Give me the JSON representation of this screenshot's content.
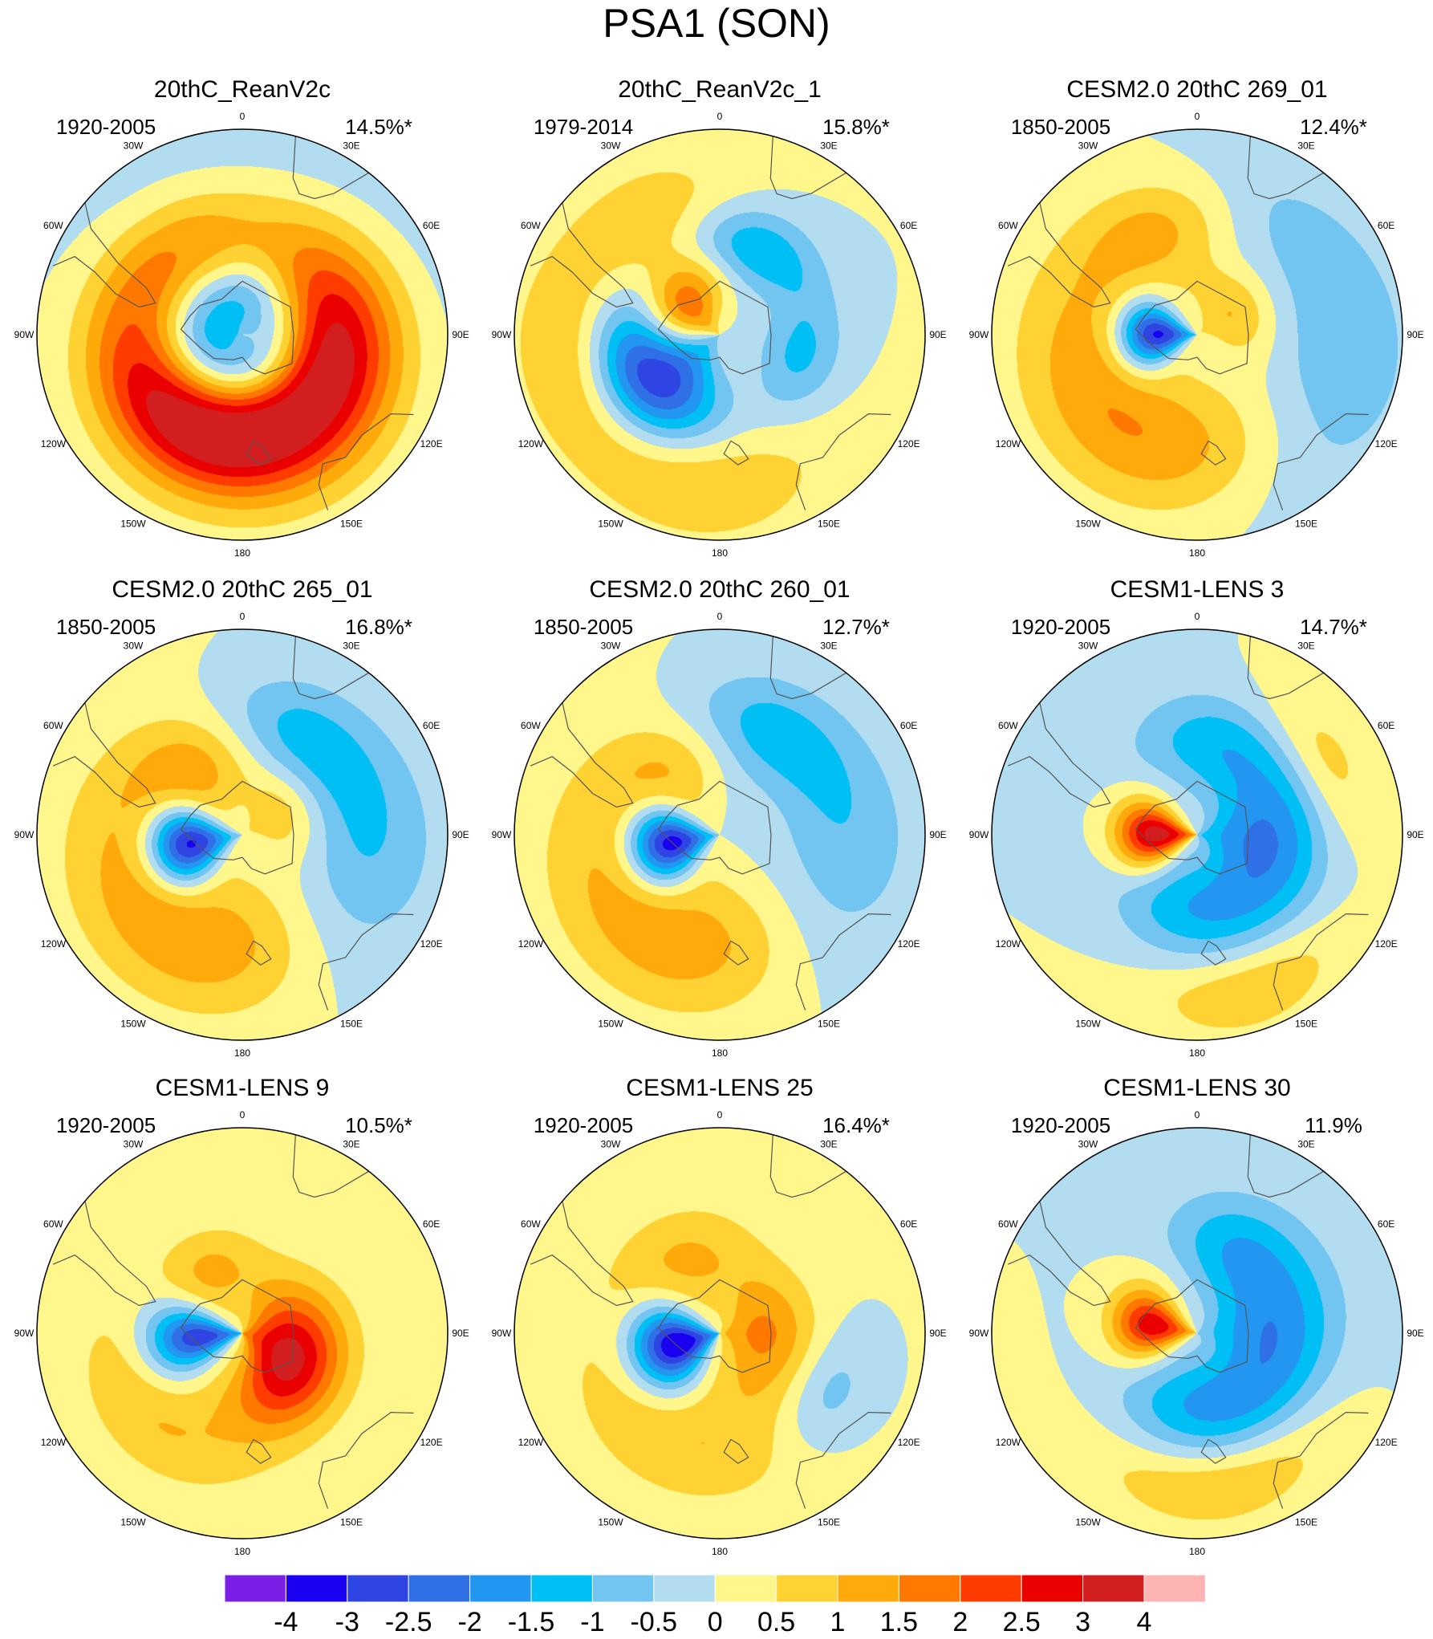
{
  "figure_title": "PSA1 (SON)",
  "longitude_labels": [
    "0",
    "30E",
    "60E",
    "90E",
    "120E",
    "150E",
    "180",
    "150W",
    "120W",
    "90W",
    "60W",
    "30W"
  ],
  "panels": [
    {
      "title": "20thC_ReanV2c",
      "period": "1920-2005",
      "variance": "14.5%*",
      "features": [
        {
          "lon": 140,
          "r": 0.5,
          "v": 2.5,
          "sa": 110,
          "sr": 0.35
        },
        {
          "lon": 90,
          "r": 0.38,
          "v": 1.5,
          "sa": 70,
          "sr": 0.25
        },
        {
          "lon": 200,
          "r": 0.48,
          "v": 1.5,
          "sa": 60,
          "sr": 0.25
        },
        {
          "lon": 250,
          "r": 0.55,
          "v": 1.0,
          "sa": 60,
          "sr": 0.25
        },
        {
          "lon": 320,
          "r": 0.48,
          "v": 1.2,
          "sa": 45,
          "sr": 0.25
        },
        {
          "lon": 220,
          "r": 0.15,
          "v": -1.6,
          "sa": 360,
          "sr": 0.22
        },
        {
          "lon": 30,
          "r": 0.95,
          "v": -0.4,
          "sa": 90,
          "sr": 0.4
        }
      ]
    },
    {
      "title": "20thC_ReanV2c_1",
      "period": "1979-2014",
      "variance": "15.8%*",
      "features": [
        {
          "lon": 240,
          "r": 0.35,
          "v": -3.5,
          "sa": 55,
          "sr": 0.28
        },
        {
          "lon": 300,
          "r": 0.22,
          "v": 2.2,
          "sa": 60,
          "sr": 0.2
        },
        {
          "lon": 20,
          "r": 0.45,
          "v": -1.6,
          "sa": 45,
          "sr": 0.2
        },
        {
          "lon": 105,
          "r": 0.4,
          "v": -1.1,
          "sa": 40,
          "sr": 0.2
        },
        {
          "lon": 190,
          "r": 0.7,
          "v": 1.1,
          "sa": 50,
          "sr": 0.3
        },
        {
          "lon": 265,
          "r": 0.75,
          "v": 1.0,
          "sa": 40,
          "sr": 0.25
        },
        {
          "lon": 330,
          "r": 0.6,
          "v": 1.0,
          "sa": 40,
          "sr": 0.3
        }
      ]
    },
    {
      "title": "CESM2.0 20thC 269_01",
      "period": "1850-2005",
      "variance": "12.4%*",
      "features": [
        {
          "lon": 270,
          "r": 0.2,
          "v": -3.5,
          "sa": 35,
          "sr": 0.18
        },
        {
          "lon": 210,
          "r": 0.55,
          "v": 1.6,
          "sa": 110,
          "sr": 0.35
        },
        {
          "lon": 340,
          "r": 0.55,
          "v": 1.1,
          "sa": 40,
          "sr": 0.25
        },
        {
          "lon": 60,
          "r": 0.2,
          "v": 1.1,
          "sa": 60,
          "sr": 0.2
        },
        {
          "lon": 115,
          "r": 0.65,
          "v": -1.2,
          "sa": 60,
          "sr": 0.4
        },
        {
          "lon": 30,
          "r": 0.65,
          "v": -0.6,
          "sa": 70,
          "sr": 0.3
        }
      ]
    },
    {
      "title": "CESM2.0 20thC 265_01",
      "period": "1850-2005",
      "variance": "16.8%*",
      "features": [
        {
          "lon": 260,
          "r": 0.27,
          "v": -3.8,
          "sa": 35,
          "sr": 0.2
        },
        {
          "lon": 205,
          "r": 0.55,
          "v": 1.6,
          "sa": 100,
          "sr": 0.35
        },
        {
          "lon": 320,
          "r": 0.4,
          "v": 1.2,
          "sa": 45,
          "sr": 0.25
        },
        {
          "lon": 60,
          "r": 0.2,
          "v": 1.0,
          "sa": 60,
          "sr": 0.2
        },
        {
          "lon": 110,
          "r": 0.6,
          "v": -1.4,
          "sa": 60,
          "sr": 0.35
        },
        {
          "lon": 30,
          "r": 0.55,
          "v": -1.2,
          "sa": 50,
          "sr": 0.25
        }
      ]
    },
    {
      "title": "CESM2.0 20thC 260_01",
      "period": "1850-2005",
      "variance": "12.7%*",
      "features": [
        {
          "lon": 260,
          "r": 0.25,
          "v": -3.8,
          "sa": 35,
          "sr": 0.2
        },
        {
          "lon": 200,
          "r": 0.55,
          "v": 1.5,
          "sa": 100,
          "sr": 0.35
        },
        {
          "lon": 320,
          "r": 0.4,
          "v": 1.0,
          "sa": 45,
          "sr": 0.25
        },
        {
          "lon": 110,
          "r": 0.6,
          "v": -1.3,
          "sa": 60,
          "sr": 0.35
        },
        {
          "lon": 25,
          "r": 0.55,
          "v": -1.3,
          "sa": 50,
          "sr": 0.25
        }
      ]
    },
    {
      "title": "CESM1-LENS 3",
      "period": "1920-2005",
      "variance": "14.7%*",
      "features": [
        {
          "lon": 270,
          "r": 0.2,
          "v": 3.5,
          "sa": 35,
          "sr": 0.2
        },
        {
          "lon": 90,
          "r": 0.3,
          "v": -1.8,
          "sa": 60,
          "sr": 0.35
        },
        {
          "lon": 180,
          "r": 0.35,
          "v": -1.4,
          "sa": 70,
          "sr": 0.25
        },
        {
          "lon": 10,
          "r": 0.45,
          "v": -1.2,
          "sa": 50,
          "sr": 0.25
        },
        {
          "lon": 60,
          "r": 0.7,
          "v": 1.0,
          "sa": 35,
          "sr": 0.2
        },
        {
          "lon": 160,
          "r": 0.8,
          "v": 1.0,
          "sa": 35,
          "sr": 0.2
        }
      ]
    },
    {
      "title": "CESM1-LENS 9",
      "period": "1920-2005",
      "variance": "10.5%*",
      "features": [
        {
          "lon": 265,
          "r": 0.22,
          "v": -3.0,
          "sa": 30,
          "sr": 0.25
        },
        {
          "lon": 130,
          "r": 0.3,
          "v": 2.4,
          "sa": 60,
          "sr": 0.25
        },
        {
          "lon": 80,
          "r": 0.15,
          "v": 1.6,
          "sa": 80,
          "sr": 0.25
        },
        {
          "lon": 330,
          "r": 0.35,
          "v": 1.0,
          "sa": 40,
          "sr": 0.2
        },
        {
          "lon": 230,
          "r": 0.6,
          "v": 1.0,
          "sa": 60,
          "sr": 0.25
        }
      ]
    },
    {
      "title": "CESM1-LENS 25",
      "period": "1920-2005",
      "variance": "16.4%*",
      "features": [
        {
          "lon": 255,
          "r": 0.22,
          "v": -3.8,
          "sa": 40,
          "sr": 0.22
        },
        {
          "lon": 90,
          "r": 0.2,
          "v": 1.6,
          "sa": 80,
          "sr": 0.25
        },
        {
          "lon": 200,
          "r": 0.55,
          "v": 1.0,
          "sa": 80,
          "sr": 0.3
        },
        {
          "lon": 330,
          "r": 0.4,
          "v": 1.0,
          "sa": 50,
          "sr": 0.25
        },
        {
          "lon": 120,
          "r": 0.6,
          "v": -1.0,
          "sa": 30,
          "sr": 0.2
        }
      ]
    },
    {
      "title": "CESM1-LENS 30",
      "period": "1920-2005",
      "variance": "11.9%",
      "features": [
        {
          "lon": 280,
          "r": 0.22,
          "v": 3.0,
          "sa": 35,
          "sr": 0.2
        },
        {
          "lon": 80,
          "r": 0.35,
          "v": -1.6,
          "sa": 60,
          "sr": 0.35
        },
        {
          "lon": 170,
          "r": 0.35,
          "v": -1.6,
          "sa": 70,
          "sr": 0.25
        },
        {
          "lon": 20,
          "r": 0.45,
          "v": -1.0,
          "sa": 40,
          "sr": 0.25
        },
        {
          "lon": 170,
          "r": 0.75,
          "v": 1.0,
          "sa": 50,
          "sr": 0.2
        }
      ]
    }
  ],
  "colorbar": {
    "tick_labels": [
      "-4",
      "-3",
      "-2.5",
      "-2",
      "-1.5",
      "-1",
      "-0.5",
      "0",
      "0.5",
      "1",
      "1.5",
      "2",
      "2.5",
      "3",
      "4"
    ],
    "levels": [
      -4,
      -3,
      -2.5,
      -2,
      -1.5,
      -1,
      -0.5,
      0,
      0.5,
      1,
      1.5,
      2,
      2.5,
      3,
      4
    ],
    "colors": [
      "#7b1fe6",
      "#1a00f0",
      "#2f45e3",
      "#3070e6",
      "#2296f0",
      "#00bff5",
      "#72c5f0",
      "#b2dcf0",
      "#fff68c",
      "#ffd233",
      "#ffaa0a",
      "#ff7800",
      "#ff3c00",
      "#eb0000",
      "#d21e1e",
      "#ffb4b4"
    ]
  }
}
